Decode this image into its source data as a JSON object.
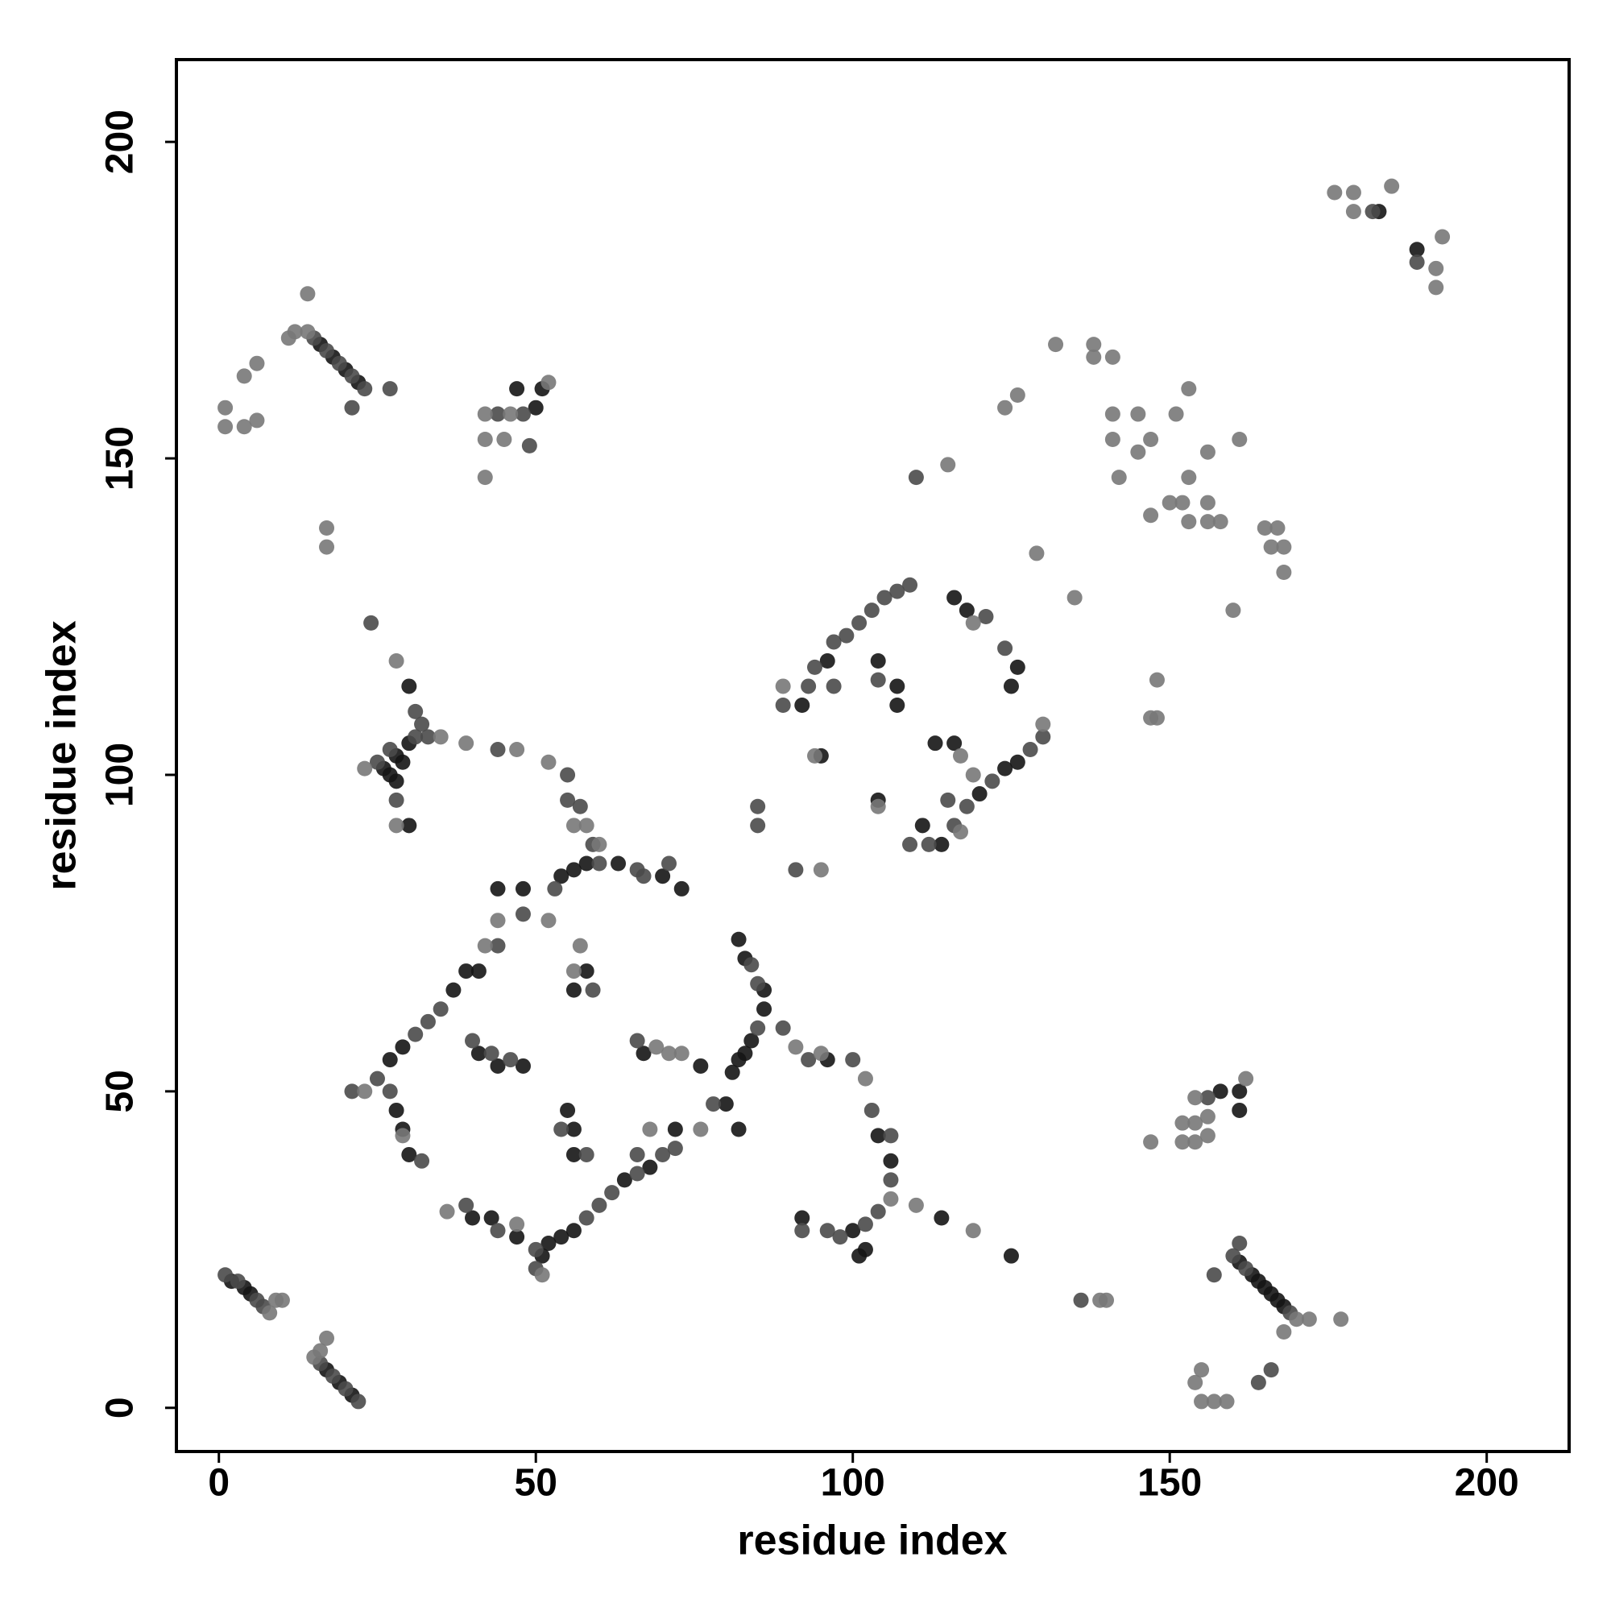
{
  "chart_data": {
    "type": "scatter",
    "xlabel": "residue index",
    "ylabel": "residue index",
    "xlim": [
      -6.7,
      213
    ],
    "ylim": [
      -6.9,
      213
    ],
    "xticks": [
      0,
      50,
      100,
      150,
      200
    ],
    "yticks": [
      0,
      50,
      100,
      150,
      200
    ],
    "series": [
      {
        "color": "#151515",
        "x": [
          2,
          4,
          5,
          17,
          19,
          21,
          16,
          18,
          20,
          22,
          30,
          26,
          27,
          28,
          28,
          29,
          30,
          30,
          27,
          29,
          37,
          39,
          41,
          44,
          48,
          54,
          56,
          58,
          63,
          70,
          73,
          56,
          58,
          28,
          29,
          30,
          40,
          43,
          47,
          51,
          52,
          54,
          56,
          64,
          68,
          72,
          55,
          56,
          56,
          41,
          44,
          48,
          67,
          81,
          82,
          83,
          84,
          82,
          83,
          86,
          82,
          100,
          101,
          102,
          104,
          106,
          92,
          114,
          92,
          96,
          104,
          107,
          107,
          95,
          104,
          111,
          113,
          116,
          116,
          118,
          126,
          125,
          126,
          124,
          120,
          114,
          161,
          158,
          161,
          163,
          164,
          165,
          166,
          167,
          168,
          161,
          183,
          189,
          51,
          50,
          47,
          125,
          96,
          76,
          80,
          86
        ],
        "values": [
          20,
          19,
          18,
          6,
          4,
          2,
          168,
          166,
          164,
          162,
          114,
          101,
          100,
          99,
          103,
          102,
          105,
          92,
          55,
          57,
          66,
          69,
          69,
          82,
          82,
          84,
          85,
          86,
          86,
          84,
          82,
          66,
          69,
          47,
          44,
          40,
          30,
          30,
          27,
          24,
          26,
          27,
          28,
          36,
          38,
          44,
          47,
          44,
          40,
          56,
          54,
          54,
          56,
          53,
          55,
          56,
          58,
          74,
          71,
          63,
          44,
          28,
          24,
          25,
          43,
          39,
          30,
          30,
          111,
          118,
          118,
          114,
          111,
          103,
          96,
          92,
          105,
          105,
          128,
          126,
          117,
          114,
          102,
          101,
          97,
          89,
          50,
          50,
          47,
          21,
          20,
          19,
          18,
          17,
          16,
          23,
          189,
          183,
          161,
          158,
          161,
          24,
          55,
          54,
          48,
          66
        ]
      },
      {
        "color": "#4a4a4a",
        "x": [
          1,
          3,
          6,
          7,
          16,
          18,
          20,
          22,
          15,
          17,
          19,
          21,
          23,
          27,
          21,
          24,
          31,
          32,
          25,
          27,
          31,
          33,
          44,
          55,
          28,
          55,
          57,
          59,
          25,
          31,
          33,
          35,
          44,
          48,
          53,
          60,
          66,
          67,
          71,
          59,
          21,
          27,
          32,
          39,
          44,
          50,
          58,
          60,
          62,
          66,
          70,
          72,
          66,
          54,
          58,
          50,
          40,
          43,
          46,
          66,
          78,
          84,
          85,
          85,
          89,
          93,
          100,
          103,
          106,
          106,
          104,
          102,
          98,
          96,
          92,
          89,
          93,
          94,
          97,
          99,
          101,
          103,
          105,
          107,
          109,
          97,
          104,
          91,
          85,
          85,
          109,
          121,
          124,
          128,
          122,
          118,
          116,
          115,
          130,
          112,
          162,
          169,
          160,
          161,
          157,
          164,
          166,
          156,
          182,
          189,
          49,
          48,
          110,
          44,
          136
        ],
        "values": [
          21,
          20,
          17,
          16,
          7,
          5,
          3,
          1,
          169,
          167,
          165,
          163,
          161,
          161,
          158,
          124,
          110,
          108,
          102,
          104,
          106,
          106,
          104,
          100,
          96,
          96,
          95,
          89,
          52,
          59,
          61,
          63,
          73,
          78,
          82,
          86,
          85,
          84,
          86,
          66,
          50,
          50,
          39,
          32,
          28,
          25,
          30,
          32,
          34,
          37,
          40,
          41,
          40,
          44,
          40,
          22,
          58,
          56,
          55,
          58,
          48,
          70,
          67,
          60,
          60,
          55,
          55,
          47,
          43,
          36,
          31,
          29,
          27,
          28,
          28,
          111,
          114,
          117,
          121,
          122,
          124,
          126,
          128,
          129,
          130,
          114,
          115,
          85,
          92,
          95,
          89,
          125,
          120,
          104,
          99,
          95,
          92,
          96,
          106,
          89,
          22,
          15,
          24,
          26,
          21,
          4,
          6,
          49,
          189,
          181,
          152,
          157,
          147,
          157,
          17
        ]
      },
      {
        "color": "#787878",
        "x": [
          8,
          9,
          10,
          15,
          17,
          16,
          14,
          14,
          12,
          11,
          1,
          1,
          4,
          6,
          4,
          6,
          17,
          17,
          42,
          46,
          52,
          42,
          45,
          42,
          28,
          35,
          39,
          47,
          52,
          28,
          23,
          56,
          58,
          60,
          42,
          44,
          52,
          57,
          56,
          23,
          29,
          36,
          47,
          51,
          68,
          69,
          71,
          73,
          76,
          91,
          95,
          102,
          106,
          110,
          119,
          89,
          104,
          94,
          95,
          117,
          119,
          117,
          119,
          130,
          115,
          124,
          129,
          135,
          138,
          138,
          141,
          141,
          141,
          142,
          145,
          145,
          147,
          147,
          147,
          148,
          150,
          151,
          152,
          153,
          153,
          153,
          156,
          156,
          156,
          158,
          160,
          161,
          165,
          166,
          167,
          168,
          168,
          132,
          126,
          148,
          176,
          179,
          179,
          185,
          192,
          192,
          193,
          154,
          154,
          152,
          154,
          152,
          147,
          156,
          156,
          162,
          170,
          172,
          177,
          168,
          155,
          154,
          155,
          157,
          159,
          140,
          139
        ],
        "values": [
          15,
          17,
          17,
          8,
          11,
          9,
          170,
          176,
          170,
          169,
          158,
          155,
          155,
          156,
          163,
          165,
          139,
          136,
          157,
          157,
          162,
          153,
          153,
          147,
          118,
          106,
          105,
          104,
          102,
          92,
          101,
          92,
          92,
          89,
          73,
          77,
          77,
          73,
          69,
          50,
          43,
          31,
          29,
          21,
          44,
          57,
          56,
          56,
          44,
          57,
          56,
          52,
          33,
          32,
          28,
          114,
          95,
          103,
          85,
          103,
          100,
          91,
          124,
          108,
          149,
          158,
          135,
          128,
          168,
          166,
          166,
          157,
          153,
          147,
          157,
          151,
          153,
          141,
          109,
          109,
          143,
          157,
          143,
          147,
          161,
          140,
          151,
          143,
          140,
          140,
          126,
          153,
          139,
          136,
          139,
          136,
          132,
          168,
          160,
          115,
          192,
          192,
          189,
          193,
          180,
          177,
          185,
          49,
          45,
          45,
          42,
          42,
          42,
          46,
          43,
          52,
          14,
          14,
          14,
          12,
          6,
          4,
          1,
          1,
          1,
          17,
          17
        ]
      }
    ]
  }
}
